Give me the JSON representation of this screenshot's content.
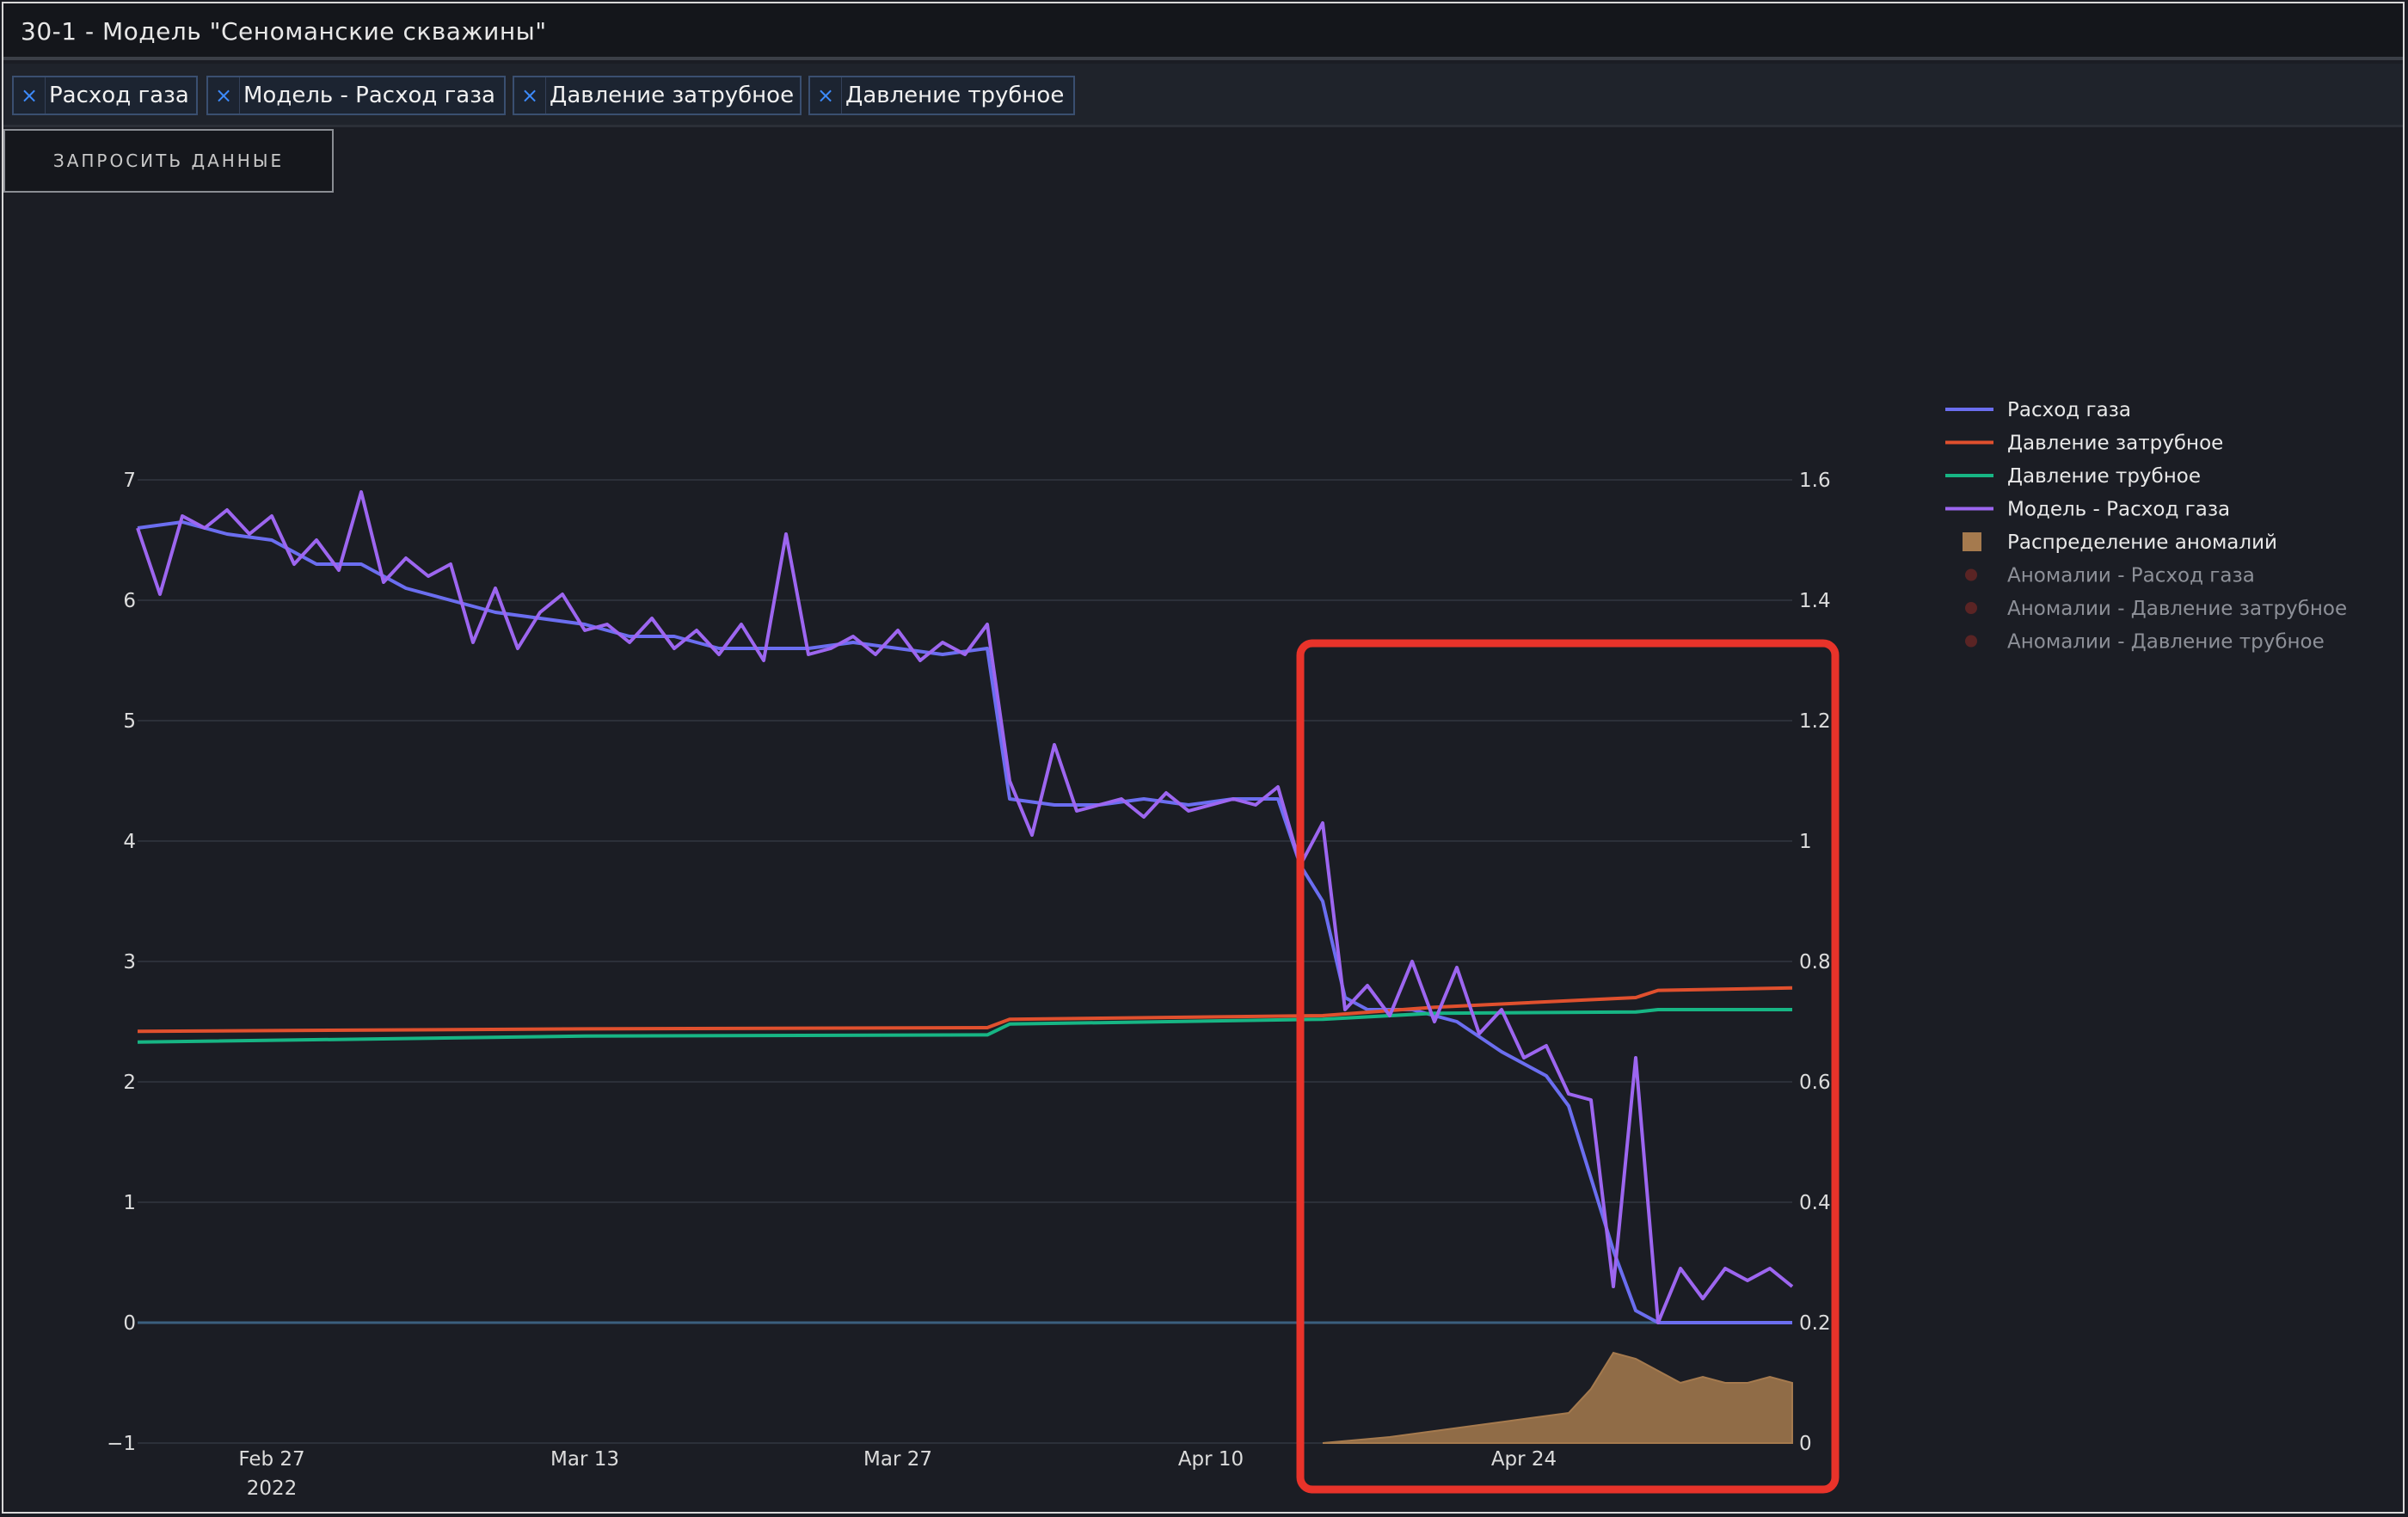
{
  "window": {
    "title": "30-1 - Модель \"Сеноманские скважины\""
  },
  "filters": [
    {
      "label": "Расход газа",
      "remove_glyph": "×"
    },
    {
      "label": "Модель - Расход газа",
      "remove_glyph": "×"
    },
    {
      "label": "Давление затрубное",
      "remove_glyph": "×"
    },
    {
      "label": "Давление трубное",
      "remove_glyph": "×"
    }
  ],
  "request_button": {
    "label": "ЗАПРОСИТЬ ДАННЫЕ"
  },
  "colors": {
    "background": "#1b1d24",
    "gas_flow": "#6b6ef0",
    "pressure_annulus": "#e0502e",
    "pressure_tubing": "#17b584",
    "model_gas_flow": "#9d66f0",
    "anomaly_distribution": "#a57a4e",
    "anomaly_marker": "#5a2424",
    "highlight_box": "#e8332a",
    "grid": "#2c3039",
    "zero_line": "#3b5f7e"
  },
  "chart_data": {
    "type": "line",
    "x_ticks": [
      {
        "date": "2022-02-27",
        "label": "Feb 27",
        "sublabel": "2022"
      },
      {
        "date": "2022-03-13",
        "label": "Mar 13",
        "sublabel": ""
      },
      {
        "date": "2022-03-27",
        "label": "Mar 27",
        "sublabel": ""
      },
      {
        "date": "2022-04-10",
        "label": "Apr 10",
        "sublabel": ""
      },
      {
        "date": "2022-04-24",
        "label": "Apr 24",
        "sublabel": ""
      }
    ],
    "xlim": [
      "2022-02-21",
      "2022-05-06"
    ],
    "y_left": {
      "ticks": [
        7,
        6,
        5,
        4,
        3,
        2,
        1,
        0,
        -1
      ],
      "tick_labels": [
        "7",
        "6",
        "5",
        "4",
        "3",
        "2",
        "1",
        "0",
        "−1"
      ],
      "range": [
        -1,
        7
      ]
    },
    "y_right": {
      "ticks": [
        1.6,
        1.4,
        1.2,
        1,
        0.8,
        0.6,
        0.4,
        0.2,
        0
      ],
      "tick_labels": [
        "1.6",
        "1.4",
        "1.2",
        "1",
        "0.8",
        "0.6",
        "0.4",
        "0.2",
        "0"
      ],
      "range": [
        0,
        1.6
      ]
    },
    "grid": true,
    "legend_position": "right",
    "legend": [
      {
        "name": "Расход газа",
        "symbol": "line",
        "color_key": "gas_flow",
        "dim": false
      },
      {
        "name": "Давление затрубное",
        "symbol": "line",
        "color_key": "pressure_annulus",
        "dim": false
      },
      {
        "name": "Давление трубное",
        "symbol": "line",
        "color_key": "pressure_tubing",
        "dim": false
      },
      {
        "name": "Модель - Расход газа",
        "symbol": "line",
        "color_key": "model_gas_flow",
        "dim": false
      },
      {
        "name": "Распределение аномалий",
        "symbol": "square",
        "color_key": "anomaly_distribution",
        "dim": false
      },
      {
        "name": "Аномалии - Расход газа",
        "symbol": "dot",
        "color_key": "anomaly_marker",
        "dim": true
      },
      {
        "name": "Аномалии - Давление затрубное",
        "symbol": "dot",
        "color_key": "anomaly_marker",
        "dim": true
      },
      {
        "name": "Аномалии - Давление трубное",
        "symbol": "dot",
        "color_key": "anomaly_marker",
        "dim": true
      }
    ],
    "series": [
      {
        "name": "Расход газа",
        "axis": "left",
        "color_key": "gas_flow",
        "points": [
          [
            "2022-02-21",
            6.6
          ],
          [
            "2022-02-23",
            6.65
          ],
          [
            "2022-02-25",
            6.55
          ],
          [
            "2022-02-27",
            6.5
          ],
          [
            "2022-03-01",
            6.3
          ],
          [
            "2022-03-03",
            6.3
          ],
          [
            "2022-03-05",
            6.1
          ],
          [
            "2022-03-07",
            6.0
          ],
          [
            "2022-03-09",
            5.9
          ],
          [
            "2022-03-11",
            5.85
          ],
          [
            "2022-03-13",
            5.8
          ],
          [
            "2022-03-15",
            5.7
          ],
          [
            "2022-03-17",
            5.7
          ],
          [
            "2022-03-19",
            5.6
          ],
          [
            "2022-03-21",
            5.6
          ],
          [
            "2022-03-23",
            5.6
          ],
          [
            "2022-03-25",
            5.65
          ],
          [
            "2022-03-27",
            5.6
          ],
          [
            "2022-03-29",
            5.55
          ],
          [
            "2022-03-31",
            5.6
          ],
          [
            "2022-04-01",
            4.35
          ],
          [
            "2022-04-03",
            4.3
          ],
          [
            "2022-04-05",
            4.3
          ],
          [
            "2022-04-07",
            4.35
          ],
          [
            "2022-04-09",
            4.3
          ],
          [
            "2022-04-11",
            4.35
          ],
          [
            "2022-04-13",
            4.35
          ],
          [
            "2022-04-14",
            3.8
          ],
          [
            "2022-04-15",
            3.5
          ],
          [
            "2022-04-16",
            2.7
          ],
          [
            "2022-04-17",
            2.6
          ],
          [
            "2022-04-19",
            2.6
          ],
          [
            "2022-04-21",
            2.5
          ],
          [
            "2022-04-23",
            2.25
          ],
          [
            "2022-04-25",
            2.05
          ],
          [
            "2022-04-26",
            1.8
          ],
          [
            "2022-04-27",
            1.2
          ],
          [
            "2022-04-28",
            0.6
          ],
          [
            "2022-04-29",
            0.1
          ],
          [
            "2022-04-30",
            0.0
          ],
          [
            "2022-05-02",
            0.0
          ],
          [
            "2022-05-04",
            0.0
          ],
          [
            "2022-05-06",
            0.0
          ]
        ]
      },
      {
        "name": "Давление затрубное",
        "axis": "left",
        "color_key": "pressure_annulus",
        "points": [
          [
            "2022-02-21",
            2.42
          ],
          [
            "2022-03-13",
            2.44
          ],
          [
            "2022-03-31",
            2.45
          ],
          [
            "2022-04-01",
            2.52
          ],
          [
            "2022-04-15",
            2.55
          ],
          [
            "2022-04-20",
            2.62
          ],
          [
            "2022-04-29",
            2.7
          ],
          [
            "2022-04-30",
            2.76
          ],
          [
            "2022-05-06",
            2.78
          ]
        ]
      },
      {
        "name": "Давление трубное",
        "axis": "left",
        "color_key": "pressure_tubing",
        "points": [
          [
            "2022-02-21",
            2.33
          ],
          [
            "2022-03-13",
            2.38
          ],
          [
            "2022-03-31",
            2.39
          ],
          [
            "2022-04-01",
            2.48
          ],
          [
            "2022-04-15",
            2.52
          ],
          [
            "2022-04-20",
            2.57
          ],
          [
            "2022-04-29",
            2.58
          ],
          [
            "2022-04-30",
            2.6
          ],
          [
            "2022-05-06",
            2.6
          ]
        ]
      },
      {
        "name": "Модель - Расход газа",
        "axis": "left",
        "color_key": "model_gas_flow",
        "points": [
          [
            "2022-02-21",
            6.6
          ],
          [
            "2022-02-22",
            6.05
          ],
          [
            "2022-02-23",
            6.7
          ],
          [
            "2022-02-24",
            6.6
          ],
          [
            "2022-02-25",
            6.75
          ],
          [
            "2022-02-26",
            6.55
          ],
          [
            "2022-02-27",
            6.7
          ],
          [
            "2022-02-28",
            6.3
          ],
          [
            "2022-03-01",
            6.5
          ],
          [
            "2022-03-02",
            6.25
          ],
          [
            "2022-03-03",
            6.9
          ],
          [
            "2022-03-04",
            6.15
          ],
          [
            "2022-03-05",
            6.35
          ],
          [
            "2022-03-06",
            6.2
          ],
          [
            "2022-03-07",
            6.3
          ],
          [
            "2022-03-08",
            5.65
          ],
          [
            "2022-03-09",
            6.1
          ],
          [
            "2022-03-10",
            5.6
          ],
          [
            "2022-03-11",
            5.9
          ],
          [
            "2022-03-12",
            6.05
          ],
          [
            "2022-03-13",
            5.75
          ],
          [
            "2022-03-14",
            5.8
          ],
          [
            "2022-03-15",
            5.65
          ],
          [
            "2022-03-16",
            5.85
          ],
          [
            "2022-03-17",
            5.6
          ],
          [
            "2022-03-18",
            5.75
          ],
          [
            "2022-03-19",
            5.55
          ],
          [
            "2022-03-20",
            5.8
          ],
          [
            "2022-03-21",
            5.5
          ],
          [
            "2022-03-22",
            6.55
          ],
          [
            "2022-03-23",
            5.55
          ],
          [
            "2022-03-24",
            5.6
          ],
          [
            "2022-03-25",
            5.7
          ],
          [
            "2022-03-26",
            5.55
          ],
          [
            "2022-03-27",
            5.75
          ],
          [
            "2022-03-28",
            5.5
          ],
          [
            "2022-03-29",
            5.65
          ],
          [
            "2022-03-30",
            5.55
          ],
          [
            "2022-03-31",
            5.8
          ],
          [
            "2022-04-01",
            4.5
          ],
          [
            "2022-04-02",
            4.05
          ],
          [
            "2022-04-03",
            4.8
          ],
          [
            "2022-04-04",
            4.25
          ],
          [
            "2022-04-05",
            4.3
          ],
          [
            "2022-04-06",
            4.35
          ],
          [
            "2022-04-07",
            4.2
          ],
          [
            "2022-04-08",
            4.4
          ],
          [
            "2022-04-09",
            4.25
          ],
          [
            "2022-04-10",
            4.3
          ],
          [
            "2022-04-11",
            4.35
          ],
          [
            "2022-04-12",
            4.3
          ],
          [
            "2022-04-13",
            4.45
          ],
          [
            "2022-04-14",
            3.8
          ],
          [
            "2022-04-15",
            4.15
          ],
          [
            "2022-04-16",
            2.6
          ],
          [
            "2022-04-17",
            2.8
          ],
          [
            "2022-04-18",
            2.55
          ],
          [
            "2022-04-19",
            3.0
          ],
          [
            "2022-04-20",
            2.5
          ],
          [
            "2022-04-21",
            2.95
          ],
          [
            "2022-04-22",
            2.4
          ],
          [
            "2022-04-23",
            2.6
          ],
          [
            "2022-04-24",
            2.2
          ],
          [
            "2022-04-25",
            2.3
          ],
          [
            "2022-04-26",
            1.9
          ],
          [
            "2022-04-27",
            1.85
          ],
          [
            "2022-04-28",
            0.3
          ],
          [
            "2022-04-29",
            2.2
          ],
          [
            "2022-04-30",
            0.0
          ],
          [
            "2022-05-01",
            0.45
          ],
          [
            "2022-05-02",
            0.2
          ],
          [
            "2022-05-03",
            0.45
          ],
          [
            "2022-05-04",
            0.35
          ],
          [
            "2022-05-05",
            0.45
          ],
          [
            "2022-05-06",
            0.3
          ]
        ]
      },
      {
        "name": "Распределение аномалий",
        "axis": "right",
        "type": "area",
        "color_key": "anomaly_distribution",
        "points": [
          [
            "2022-04-15",
            0.0
          ],
          [
            "2022-04-18",
            0.01
          ],
          [
            "2022-04-20",
            0.02
          ],
          [
            "2022-04-22",
            0.03
          ],
          [
            "2022-04-24",
            0.04
          ],
          [
            "2022-04-26",
            0.05
          ],
          [
            "2022-04-27",
            0.09
          ],
          [
            "2022-04-28",
            0.15
          ],
          [
            "2022-04-29",
            0.14
          ],
          [
            "2022-04-30",
            0.12
          ],
          [
            "2022-05-01",
            0.1
          ],
          [
            "2022-05-02",
            0.11
          ],
          [
            "2022-05-03",
            0.1
          ],
          [
            "2022-05-04",
            0.1
          ],
          [
            "2022-05-05",
            0.11
          ],
          [
            "2022-05-06",
            0.1
          ]
        ]
      }
    ]
  }
}
